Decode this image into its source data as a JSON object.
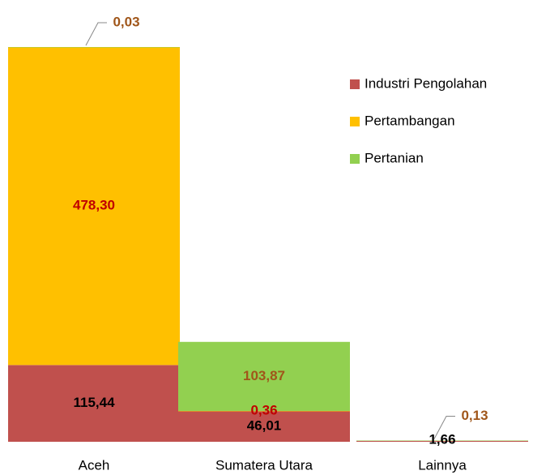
{
  "chart_data": {
    "type": "stacked_bar",
    "categories": [
      "Aceh",
      "Sumatera Utara",
      "Lainnya"
    ],
    "series": [
      {
        "name": "Industri Pengolahan",
        "color": "#c0504d",
        "label_color": "#000000",
        "values": [
          115.44,
          46.01,
          1.66
        ],
        "value_labels": [
          "115,44",
          "46,01",
          "1,66"
        ]
      },
      {
        "name": "Pertambangan",
        "color": "#ffc000",
        "label_color": "#c00000",
        "values": [
          478.3,
          0.36,
          null
        ],
        "value_labels": [
          "478,30",
          "0,36",
          null
        ]
      },
      {
        "name": "Pertanian",
        "color": "#92d050",
        "label_color": "#a0561a",
        "values": [
          0.03,
          103.87,
          0.13
        ],
        "value_labels": [
          "0,03",
          "103,87",
          "0,13"
        ]
      }
    ],
    "legend": "right"
  }
}
